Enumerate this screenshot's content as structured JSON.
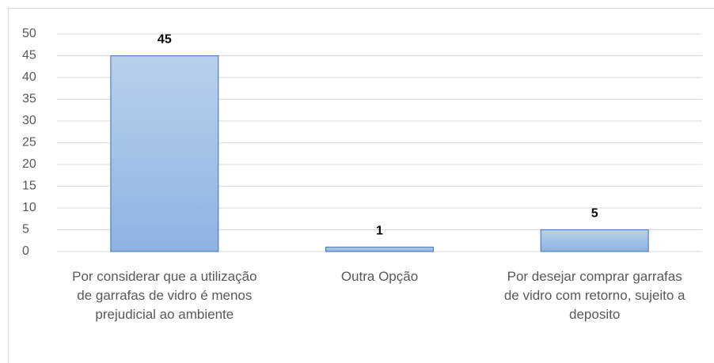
{
  "chart_data": {
    "type": "bar",
    "categories": [
      "Por considerar que a utilização de garrafas de vidro é menos prejudicial ao ambiente",
      "Outra Opção",
      "Por desejar comprar garrafas de vidro com retorno, sujeito a deposito"
    ],
    "values": [
      45,
      1,
      5
    ],
    "color": "#9dbfe8",
    "ylim": [
      0,
      50
    ],
    "yticks": [
      0,
      5,
      10,
      15,
      20,
      25,
      30,
      35,
      40,
      45,
      50
    ],
    "grid": true
  }
}
